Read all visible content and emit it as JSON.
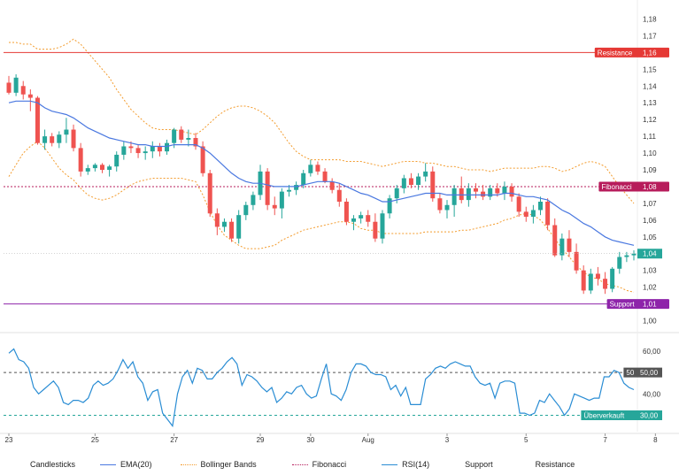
{
  "chart_data": [
    {
      "type": "candlestick",
      "title": "",
      "y_range": [
        0.995,
        1.185
      ],
      "y_ticks": [
        "1,18",
        "1,17",
        "1,16",
        "1,15",
        "1,14",
        "1,13",
        "1,12",
        "1,11",
        "1,10",
        "1,09",
        "1,08",
        "1,07",
        "1,06",
        "1,05",
        "1,04",
        "1,03",
        "1,02",
        "1,01",
        "1,00"
      ],
      "y_tick_values": [
        1.18,
        1.17,
        1.16,
        1.15,
        1.14,
        1.13,
        1.12,
        1.11,
        1.1,
        1.09,
        1.08,
        1.07,
        1.06,
        1.05,
        1.04,
        1.03,
        1.02,
        1.01,
        1.0
      ],
      "x_ticks": [
        {
          "label": "23",
          "index": 0
        },
        {
          "label": "25",
          "index": 12
        },
        {
          "label": "27",
          "index": 23
        },
        {
          "label": "29",
          "index": 35
        },
        {
          "label": "30",
          "index": 42
        },
        {
          "label": "Aug",
          "index": 50
        },
        {
          "label": "3",
          "index": 61
        },
        {
          "label": "5",
          "index": 72
        },
        {
          "label": "7",
          "index": 83
        },
        {
          "label": "8",
          "index": 90
        }
      ],
      "candles": [
        [
          1.142,
          1.146,
          1.135,
          1.136
        ],
        [
          1.136,
          1.147,
          1.134,
          1.145
        ],
        [
          1.14,
          1.143,
          1.132,
          1.135
        ],
        [
          1.135,
          1.138,
          1.125,
          1.133
        ],
        [
          1.133,
          1.134,
          1.105,
          1.106
        ],
        [
          1.106,
          1.114,
          1.102,
          1.11
        ],
        [
          1.11,
          1.112,
          1.104,
          1.106
        ],
        [
          1.106,
          1.113,
          1.103,
          1.111
        ],
        [
          1.111,
          1.121,
          1.106,
          1.114
        ],
        [
          1.114,
          1.117,
          1.101,
          1.103
        ],
        [
          1.103,
          1.106,
          1.086,
          1.089
        ],
        [
          1.089,
          1.093,
          1.087,
          1.091
        ],
        [
          1.091,
          1.094,
          1.089,
          1.093
        ],
        [
          1.093,
          1.094,
          1.088,
          1.09
        ],
        [
          1.09,
          1.093,
          1.086,
          1.092
        ],
        [
          1.092,
          1.101,
          1.089,
          1.099
        ],
        [
          1.099,
          1.107,
          1.096,
          1.104
        ],
        [
          1.104,
          1.107,
          1.1,
          1.103
        ],
        [
          1.103,
          1.105,
          1.097,
          1.1
        ],
        [
          1.1,
          1.104,
          1.096,
          1.101
        ],
        [
          1.101,
          1.107,
          1.097,
          1.104
        ],
        [
          1.104,
          1.106,
          1.098,
          1.101
        ],
        [
          1.101,
          1.108,
          1.099,
          1.106
        ],
        [
          1.106,
          1.115,
          1.103,
          1.114
        ],
        [
          1.114,
          1.116,
          1.106,
          1.108
        ],
        [
          1.108,
          1.114,
          1.104,
          1.109
        ],
        [
          1.109,
          1.112,
          1.102,
          1.104
        ],
        [
          1.104,
          1.107,
          1.086,
          1.088
        ],
        [
          1.088,
          1.09,
          1.062,
          1.064
        ],
        [
          1.064,
          1.067,
          1.051,
          1.056
        ],
        [
          1.056,
          1.061,
          1.053,
          1.059
        ],
        [
          1.059,
          1.061,
          1.047,
          1.049
        ],
        [
          1.049,
          1.066,
          1.046,
          1.063
        ],
        [
          1.063,
          1.071,
          1.06,
          1.069
        ],
        [
          1.069,
          1.077,
          1.066,
          1.075
        ],
        [
          1.075,
          1.093,
          1.072,
          1.089
        ],
        [
          1.089,
          1.091,
          1.066,
          1.069
        ],
        [
          1.069,
          1.074,
          1.063,
          1.067
        ],
        [
          1.067,
          1.079,
          1.061,
          1.077
        ],
        [
          1.077,
          1.081,
          1.074,
          1.078
        ],
        [
          1.078,
          1.083,
          1.075,
          1.081
        ],
        [
          1.081,
          1.09,
          1.079,
          1.088
        ],
        [
          1.088,
          1.096,
          1.086,
          1.093
        ],
        [
          1.093,
          1.095,
          1.087,
          1.089
        ],
        [
          1.089,
          1.091,
          1.082,
          1.083
        ],
        [
          1.083,
          1.085,
          1.076,
          1.078
        ],
        [
          1.078,
          1.082,
          1.068,
          1.071
        ],
        [
          1.071,
          1.073,
          1.057,
          1.059
        ],
        [
          1.059,
          1.063,
          1.054,
          1.061
        ],
        [
          1.061,
          1.065,
          1.058,
          1.063
        ],
        [
          1.063,
          1.066,
          1.056,
          1.059
        ],
        [
          1.059,
          1.064,
          1.047,
          1.049
        ],
        [
          1.049,
          1.066,
          1.046,
          1.064
        ],
        [
          1.064,
          1.075,
          1.061,
          1.073
        ],
        [
          1.073,
          1.081,
          1.07,
          1.079
        ],
        [
          1.079,
          1.087,
          1.076,
          1.085
        ],
        [
          1.085,
          1.088,
          1.079,
          1.081
        ],
        [
          1.081,
          1.088,
          1.078,
          1.086
        ],
        [
          1.086,
          1.094,
          1.083,
          1.089
        ],
        [
          1.089,
          1.092,
          1.071,
          1.073
        ],
        [
          1.073,
          1.076,
          1.064,
          1.066
        ],
        [
          1.066,
          1.072,
          1.061,
          1.069
        ],
        [
          1.069,
          1.081,
          1.062,
          1.079
        ],
        [
          1.079,
          1.086,
          1.07,
          1.072
        ],
        [
          1.072,
          1.082,
          1.068,
          1.079
        ],
        [
          1.079,
          1.082,
          1.073,
          1.077
        ],
        [
          1.077,
          1.081,
          1.072,
          1.074
        ],
        [
          1.074,
          1.081,
          1.072,
          1.079
        ],
        [
          1.079,
          1.082,
          1.074,
          1.076
        ],
        [
          1.076,
          1.083,
          1.072,
          1.08
        ],
        [
          1.08,
          1.082,
          1.071,
          1.074
        ],
        [
          1.074,
          1.076,
          1.062,
          1.065
        ],
        [
          1.065,
          1.068,
          1.059,
          1.062
        ],
        [
          1.062,
          1.069,
          1.058,
          1.066
        ],
        [
          1.066,
          1.074,
          1.063,
          1.071
        ],
        [
          1.071,
          1.073,
          1.054,
          1.057
        ],
        [
          1.057,
          1.061,
          1.038,
          1.039
        ],
        [
          1.039,
          1.052,
          1.036,
          1.049
        ],
        [
          1.049,
          1.054,
          1.038,
          1.041
        ],
        [
          1.041,
          1.046,
          1.028,
          1.03
        ],
        [
          1.03,
          1.033,
          1.016,
          1.018
        ],
        [
          1.018,
          1.031,
          1.016,
          1.028
        ],
        [
          1.028,
          1.032,
          1.021,
          1.025
        ],
        [
          1.025,
          1.029,
          1.016,
          1.019
        ],
        [
          1.019,
          1.032,
          1.017,
          1.031
        ],
        [
          1.031,
          1.041,
          1.028,
          1.038
        ],
        [
          1.038,
          1.041,
          1.035,
          1.039
        ],
        [
          1.039,
          1.042,
          1.036,
          1.04
        ]
      ],
      "ema20": [
        1.13,
        1.131,
        1.131,
        1.131,
        1.13,
        1.127,
        1.125,
        1.124,
        1.123,
        1.121,
        1.118,
        1.115,
        1.113,
        1.111,
        1.109,
        1.108,
        1.107,
        1.106,
        1.105,
        1.105,
        1.104,
        1.104,
        1.104,
        1.105,
        1.105,
        1.105,
        1.105,
        1.103,
        1.1,
        1.096,
        1.092,
        1.088,
        1.085,
        1.083,
        1.082,
        1.082,
        1.081,
        1.08,
        1.08,
        1.08,
        1.08,
        1.081,
        1.082,
        1.083,
        1.083,
        1.083,
        1.082,
        1.08,
        1.078,
        1.076,
        1.075,
        1.073,
        1.071,
        1.071,
        1.072,
        1.073,
        1.074,
        1.075,
        1.076,
        1.076,
        1.076,
        1.075,
        1.075,
        1.075,
        1.075,
        1.075,
        1.075,
        1.075,
        1.075,
        1.076,
        1.076,
        1.075,
        1.074,
        1.074,
        1.073,
        1.072,
        1.069,
        1.066,
        1.064,
        1.061,
        1.058,
        1.056,
        1.053,
        1.05,
        1.048,
        1.047,
        1.046,
        1.045
      ],
      "bb_upper": [
        1.166,
        1.166,
        1.165,
        1.165,
        1.162,
        1.162,
        1.162,
        1.163,
        1.165,
        1.168,
        1.165,
        1.16,
        1.155,
        1.15,
        1.145,
        1.138,
        1.132,
        1.126,
        1.122,
        1.118,
        1.115,
        1.114,
        1.114,
        1.114,
        1.113,
        1.112,
        1.111,
        1.114,
        1.118,
        1.122,
        1.125,
        1.127,
        1.128,
        1.128,
        1.127,
        1.125,
        1.122,
        1.118,
        1.112,
        1.106,
        1.101,
        1.098,
        1.096,
        1.096,
        1.096,
        1.096,
        1.096,
        1.095,
        1.095,
        1.095,
        1.094,
        1.093,
        1.092,
        1.093,
        1.094,
        1.095,
        1.095,
        1.095,
        1.094,
        1.094,
        1.093,
        1.092,
        1.092,
        1.091,
        1.09,
        1.09,
        1.09,
        1.089,
        1.09,
        1.091,
        1.091,
        1.091,
        1.091,
        1.091,
        1.092,
        1.092,
        1.091,
        1.089,
        1.09,
        1.092,
        1.094,
        1.095,
        1.094,
        1.092,
        1.086,
        1.08,
        1.075,
        1.07
      ],
      "bb_lower": [
        1.086,
        1.093,
        1.1,
        1.104,
        1.107,
        1.103,
        1.097,
        1.091,
        1.087,
        1.084,
        1.079,
        1.075,
        1.073,
        1.072,
        1.073,
        1.075,
        1.078,
        1.081,
        1.083,
        1.084,
        1.085,
        1.085,
        1.085,
        1.085,
        1.085,
        1.084,
        1.083,
        1.075,
        1.065,
        1.057,
        1.051,
        1.048,
        1.045,
        1.043,
        1.043,
        1.043,
        1.044,
        1.045,
        1.048,
        1.05,
        1.052,
        1.054,
        1.055,
        1.056,
        1.057,
        1.058,
        1.059,
        1.059,
        1.058,
        1.055,
        1.054,
        1.054,
        1.052,
        1.052,
        1.052,
        1.052,
        1.052,
        1.052,
        1.053,
        1.053,
        1.053,
        1.053,
        1.053,
        1.054,
        1.054,
        1.055,
        1.056,
        1.057,
        1.058,
        1.06,
        1.061,
        1.063,
        1.064,
        1.063,
        1.06,
        1.055,
        1.049,
        1.043,
        1.038,
        1.033,
        1.029,
        1.026,
        1.025,
        1.022,
        1.021,
        1.02,
        1.018,
        1.017
      ],
      "levels": [
        {
          "name": "Resistance",
          "value": 1.16,
          "value_label": "1,16",
          "color": "#e53935",
          "style": "solid"
        },
        {
          "name": "Fibonacci",
          "value": 1.08,
          "value_label": "1,08",
          "color": "#b71c5b",
          "style": "dotted"
        },
        {
          "name": "Support",
          "value": 1.01,
          "value_label": "1,01",
          "color": "#8e24aa",
          "style": "solid"
        }
      ],
      "last_price": {
        "value": 1.04,
        "label": "1,04",
        "color": "#26a69a"
      },
      "up_color": "#26a69a",
      "down_color": "#ef5350",
      "ema_color": "#4a78e0",
      "bb_color": "#f39c2e",
      "grid": false
    },
    {
      "type": "line",
      "title": "",
      "series_name": "RSI(14)",
      "y_range": [
        24,
        67
      ],
      "y_ticks": [
        "60,00",
        "50,00",
        "40,00",
        "30,00"
      ],
      "y_tick_values": [
        60,
        50,
        40,
        30
      ],
      "values": [
        59,
        61,
        56,
        55,
        52,
        43,
        40,
        42,
        44,
        46,
        43,
        36,
        35,
        37,
        37,
        36,
        38,
        44,
        46,
        44,
        45,
        47,
        51,
        56,
        52,
        55,
        48,
        45,
        37,
        41,
        42,
        31,
        28,
        25,
        40,
        48,
        51,
        45,
        52,
        51,
        47,
        47,
        50,
        52,
        55,
        57,
        54,
        44,
        49,
        48,
        46,
        43,
        41,
        43,
        36,
        38,
        41,
        40,
        43,
        44,
        40,
        38,
        39,
        47,
        54,
        40,
        39,
        37,
        42,
        50,
        54,
        54,
        53,
        50,
        49,
        49,
        48,
        42,
        44,
        39,
        43,
        35,
        35,
        35,
        47,
        49,
        52,
        53,
        52,
        54,
        55,
        54,
        53,
        53,
        48,
        45,
        44,
        45,
        38,
        45,
        46,
        46,
        45,
        31,
        31,
        30,
        31,
        37,
        36,
        40,
        37,
        34,
        30,
        33,
        40,
        39,
        38,
        37,
        38,
        38,
        48,
        48,
        51,
        50,
        45,
        43,
        42
      ],
      "levels": [
        {
          "name": "50",
          "value": 50,
          "value_label": "50,00",
          "color": "#555555",
          "style": "dashed"
        },
        {
          "name": "Überverkauft",
          "value": 30,
          "value_label": "30,00",
          "color": "#26a69a",
          "style": "dashed"
        }
      ],
      "line_color": "#2a8dd4"
    }
  ],
  "legend": [
    {
      "label": "Candlesticks",
      "swatch": "none",
      "color": ""
    },
    {
      "label": "EMA(20)",
      "swatch": "solid",
      "color": "#4a78e0"
    },
    {
      "label": "Bollinger Bands",
      "swatch": "dotted",
      "color": "#f39c2e"
    },
    {
      "label": "Fibonacci",
      "swatch": "dotted",
      "color": "#b71c5b"
    },
    {
      "label": "RSI(14)",
      "swatch": "solid",
      "color": "#2a8dd4"
    },
    {
      "label": "Support",
      "swatch": "none",
      "color": ""
    },
    {
      "label": "Resistance",
      "swatch": "none",
      "color": ""
    }
  ]
}
